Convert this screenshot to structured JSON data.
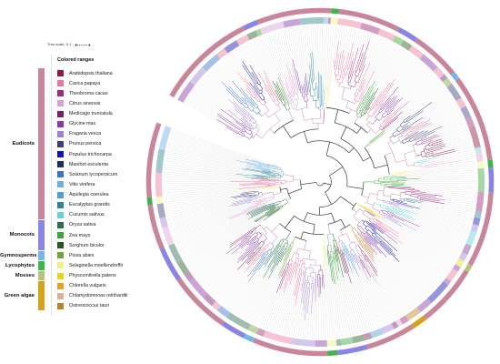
{
  "tree_scale": {
    "label": "Tree scale:",
    "value": "0.1"
  },
  "legend": {
    "title": "Colored ranges"
  },
  "groups": [
    {
      "name": "Eudicots",
      "color": "#c9859a",
      "species": [
        {
          "name": "Arabidopsis thaliana",
          "color": "#8e1b3b"
        },
        {
          "name": "Carica papaya",
          "color": "#e8799b"
        },
        {
          "name": "Theobroma cacao",
          "color": "#a0287a"
        },
        {
          "name": "Citrus sinensis",
          "color": "#d8a2d2"
        },
        {
          "name": "Medicago truncatula",
          "color": "#7d1c6e"
        },
        {
          "name": "Glycine max",
          "color": "#8a3aa8"
        },
        {
          "name": "Fragaria vesca",
          "color": "#9b83d6"
        },
        {
          "name": "Prunus persica",
          "color": "#3d3f82"
        },
        {
          "name": "Populus trichocarpa",
          "color": "#1414b4"
        },
        {
          "name": "Manihot esculenta",
          "color": "#1c2b63"
        },
        {
          "name": "Solanum lycopersicum",
          "color": "#3a73c9"
        },
        {
          "name": "Vitis vinifera",
          "color": "#6aaee2"
        },
        {
          "name": "Aquilegia coerulea",
          "color": "#4b9fd6"
        },
        {
          "name": "Eucalyptus grandis",
          "color": "#2c8590"
        },
        {
          "name": "Cucumis sativus",
          "color": "#63d2d6"
        }
      ]
    },
    {
      "name": "Monocots",
      "color": "#8a84e6",
      "species": [
        {
          "name": "Oryza sativa",
          "color": "#2b6e53"
        },
        {
          "name": "Zea mays",
          "color": "#38a838"
        },
        {
          "name": "Sorghum bicolor",
          "color": "#1f5a1f"
        }
      ]
    },
    {
      "name": "Gymnosperms",
      "color": "#74b6e6",
      "species": [
        {
          "name": "Picea abies",
          "color": "#6ea83a"
        }
      ]
    },
    {
      "name": "Lycophytes",
      "color": "#3cb54a",
      "species": [
        {
          "name": "Selaginella moellendorffii",
          "color": "#f2ef88"
        }
      ]
    },
    {
      "name": "Mosses",
      "color": "#b8c47a",
      "species": [
        {
          "name": "Physcomitrella patens",
          "color": "#e4d41e"
        }
      ]
    },
    {
      "name": "Green algae",
      "color": "#d6a21c",
      "species": [
        {
          "name": "Chlorella vulgaris",
          "color": "#e6a21f"
        },
        {
          "name": "Chlamydomonas reinhardtii",
          "color": "#d9b395"
        },
        {
          "name": "Ostreococcus tauri",
          "color": "#b8862a"
        }
      ]
    }
  ]
}
